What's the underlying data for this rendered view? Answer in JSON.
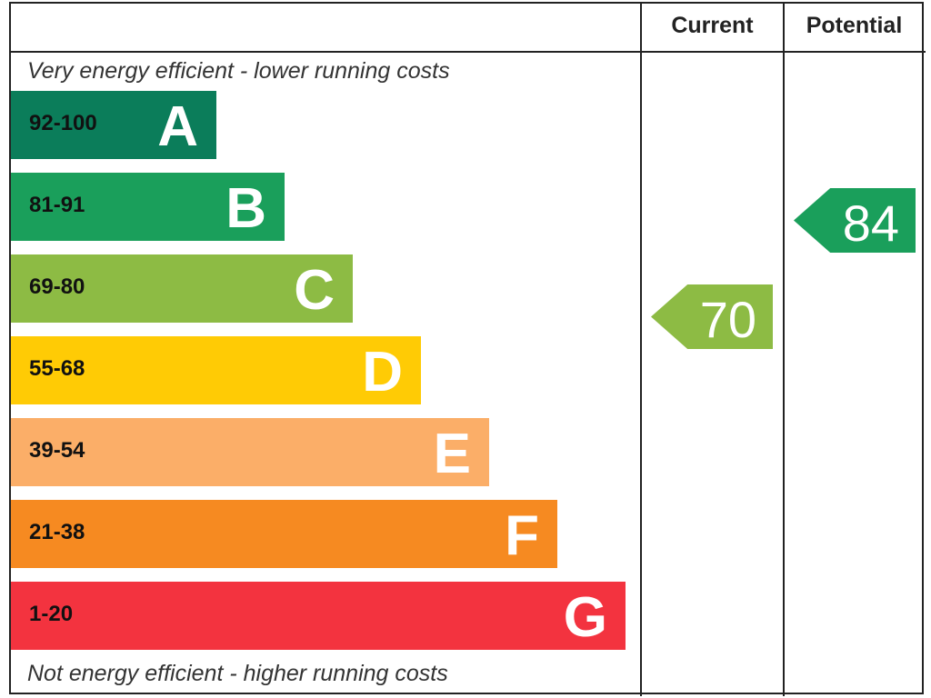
{
  "header": {
    "current": "Current",
    "potential": "Potential"
  },
  "notes": {
    "top": "Very energy efficient - lower running costs",
    "bottom": "Not energy efficient - higher running costs"
  },
  "chart_data": {
    "type": "bar",
    "bands": [
      {
        "letter": "A",
        "range": "92-100",
        "color": "#0b7d5a"
      },
      {
        "letter": "B",
        "range": "81-91",
        "color": "#1a9f5b"
      },
      {
        "letter": "C",
        "range": "69-80",
        "color": "#8dbb44"
      },
      {
        "letter": "D",
        "range": "55-68",
        "color": "#ffcb05"
      },
      {
        "letter": "E",
        "range": "39-54",
        "color": "#fbae68"
      },
      {
        "letter": "F",
        "range": "21-38",
        "color": "#f68a21"
      },
      {
        "letter": "G",
        "range": "1-20",
        "color": "#f3333f"
      }
    ],
    "current": {
      "value": "70",
      "band": "C",
      "color": "#8dbb44"
    },
    "potential": {
      "value": "84",
      "band": "B",
      "color": "#1a9f5b"
    }
  }
}
